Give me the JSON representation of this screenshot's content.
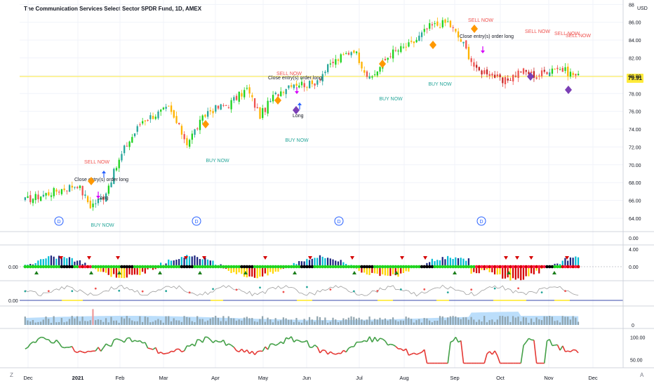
{
  "chart_title": "The Communication Services Select Sector SPDR Fund, 1D, AMEX",
  "currency": "USD",
  "last_price": "79.91",
  "corner_left": "Z",
  "corner_right": "A",
  "colors": {
    "up": "#26a69a",
    "green_bright": "#1fd31f",
    "down": "#ef5350",
    "orange": "#ff9800",
    "purple": "#7b3fb5",
    "magenta": "#d500f9",
    "blue": "#2962ff",
    "grid": "#f0f3fa",
    "price_line": "#ffeb3b"
  },
  "chart_data": [
    {
      "type": "candlestick",
      "title": "The Communication Services Select Sector SPDR Fund, 1D, AMEX",
      "x_ticks": [
        "Dec",
        "2021",
        "Feb",
        "Mar",
        "Apr",
        "May",
        "Jun",
        "Jul",
        "Aug",
        "Sep",
        "Oct",
        "Nov",
        "Dec"
      ],
      "y_ticks": [
        "64.00",
        "66.00",
        "68.00",
        "70.00",
        "72.00",
        "74.00",
        "76.00",
        "78.00",
        "80.00",
        "82.00",
        "84.00",
        "86.00",
        "88"
      ],
      "ylim": [
        62.5,
        88.5
      ],
      "key_points": [
        [
          0,
          66.0
        ],
        [
          20,
          67.8
        ],
        [
          25,
          65.4
        ],
        [
          30,
          66.4
        ],
        [
          38,
          71.8
        ],
        [
          45,
          75.0
        ],
        [
          55,
          76.3
        ],
        [
          62,
          72.5
        ],
        [
          70,
          76.0
        ],
        [
          78,
          76.8
        ],
        [
          85,
          78.5
        ],
        [
          90,
          75.5
        ],
        [
          95,
          77.6
        ],
        [
          102,
          79.2
        ],
        [
          110,
          79.0
        ],
        [
          118,
          81.5
        ],
        [
          126,
          83.0
        ],
        [
          132,
          79.5
        ],
        [
          140,
          82.5
        ],
        [
          148,
          83.5
        ],
        [
          155,
          85.5
        ],
        [
          162,
          86.0
        ],
        [
          168,
          83.5
        ],
        [
          173,
          80.5
        ],
        [
          178,
          80.5
        ],
        [
          183,
          79.2
        ],
        [
          190,
          80.6
        ],
        [
          196,
          80.0
        ],
        [
          203,
          81.0
        ],
        [
          208,
          80.4
        ],
        [
          212,
          79.9
        ]
      ],
      "annotations": [
        {
          "text": "SELL NOW",
          "color": "#ef5350"
        },
        {
          "text": "Close entry(s) order long",
          "color": "#131722"
        },
        {
          "text": "Long",
          "color": "#131722"
        },
        {
          "text": "BUY NOW",
          "color": "#26a69a"
        },
        {
          "text": "BUY NOW",
          "color": "#26a69a"
        },
        {
          "text": "SELL NOW",
          "color": "#ef5350"
        },
        {
          "text": "Close entry(s) order long",
          "color": "#131722"
        },
        {
          "text": "Long",
          "color": "#131722"
        },
        {
          "text": "BUY NOW",
          "color": "#26a69a"
        },
        {
          "text": "BUY NOW",
          "color": "#26a69a"
        },
        {
          "text": "BUY NOW",
          "color": "#26a69a"
        },
        {
          "text": "SELL NOW",
          "color": "#ef5350"
        },
        {
          "text": "Close entry(s) order long",
          "color": "#131722"
        },
        {
          "text": "SELL NOW",
          "color": "#ef5350"
        },
        {
          "text": "SELL NOW",
          "color": "#ef5350"
        },
        {
          "text": "SELL NOW",
          "color": "#ef5350"
        }
      ],
      "dividend_markers": [
        "D",
        "D",
        "D",
        "D"
      ]
    },
    {
      "type": "bar",
      "title": "",
      "y_ticks": [
        "4.00",
        "0.00"
      ],
      "left_label": "0.00"
    },
    {
      "type": "line",
      "title": "",
      "left_label": "0.00"
    },
    {
      "type": "bar",
      "title": "",
      "y_ticks": [
        "0"
      ]
    },
    {
      "type": "line",
      "title": "",
      "y_ticks": [
        "100.00",
        "50.00"
      ],
      "ylim": [
        35,
        110
      ]
    }
  ]
}
